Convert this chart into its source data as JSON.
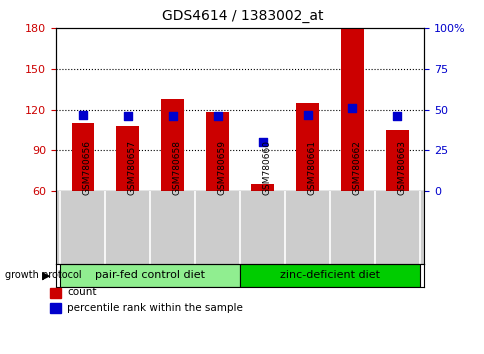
{
  "title": "GDS4614 / 1383002_at",
  "samples": [
    "GSM780656",
    "GSM780657",
    "GSM780658",
    "GSM780659",
    "GSM780660",
    "GSM780661",
    "GSM780662",
    "GSM780663"
  ],
  "count_values": [
    110,
    108,
    128,
    118,
    65,
    125,
    180,
    105
  ],
  "percentile_values": [
    47,
    46,
    46,
    46,
    30,
    47,
    51,
    46
  ],
  "ylim_left": [
    60,
    180
  ],
  "ylim_right": [
    0,
    100
  ],
  "yticks_left": [
    60,
    90,
    120,
    150,
    180
  ],
  "yticks_right": [
    0,
    25,
    50,
    75,
    100
  ],
  "ytick_labels_right": [
    "0",
    "25",
    "50",
    "75",
    "100%"
  ],
  "bar_color": "#cc0000",
  "dot_color": "#0000cc",
  "bar_bottom": 60,
  "groups": [
    {
      "label": "pair-fed control diet",
      "start": 0,
      "end": 4,
      "color": "#90ee90"
    },
    {
      "label": "zinc-deficient diet",
      "start": 4,
      "end": 8,
      "color": "#00cc00"
    }
  ],
  "group_row_label": "growth protocol",
  "legend_items": [
    {
      "label": "count",
      "color": "#cc0000"
    },
    {
      "label": "percentile rank within the sample",
      "color": "#0000cc"
    }
  ],
  "tick_label_color_left": "#cc0000",
  "tick_label_color_right": "#0000cc",
  "title_fontsize": 10,
  "bar_width": 0.5,
  "dot_size": 30,
  "background_color": "#ffffff",
  "plot_bg_color": "#ffffff",
  "label_box_color": "#cccccc",
  "label_box_border_color": "#aaaaaa"
}
